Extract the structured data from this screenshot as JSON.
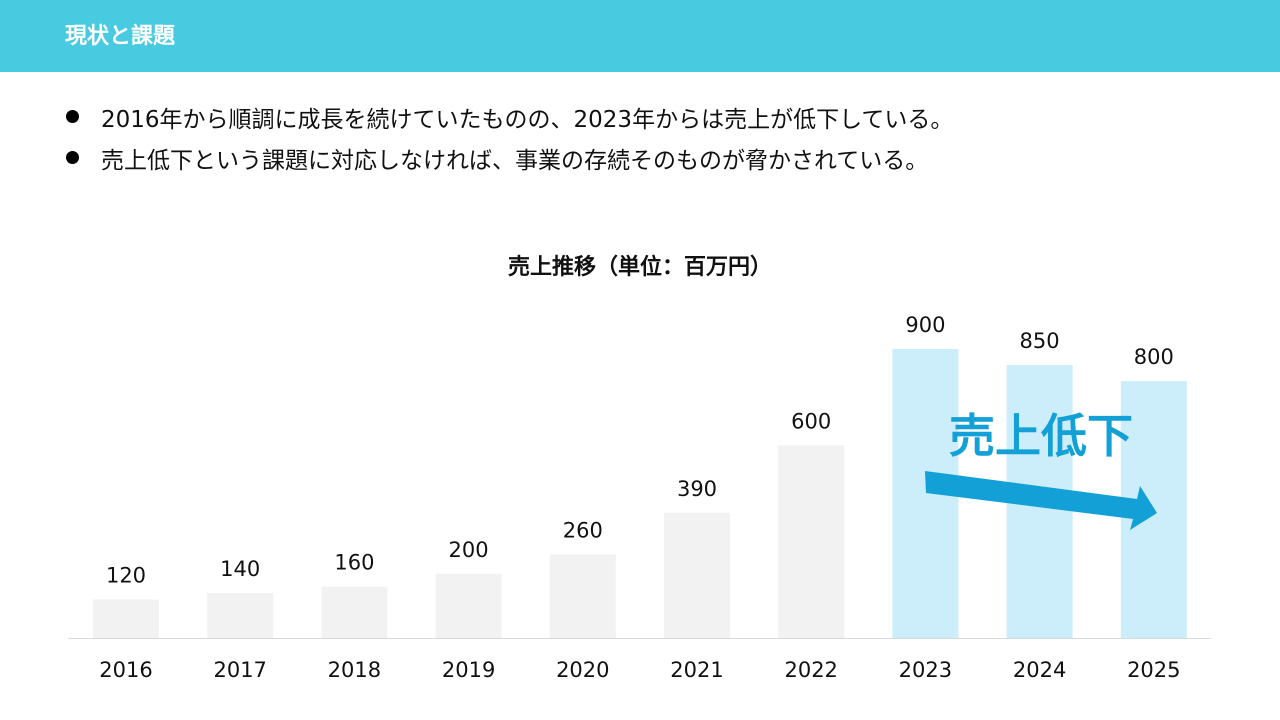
{
  "header": {
    "title": "現状と課題"
  },
  "bullets": [
    "2016年から順調に成長を続けていたものの、2023年からは売上が低下している。",
    "売上低下という課題に対応しなければ、事業の存続そのものが脅かされている。"
  ],
  "colors": {
    "header": "#48cae0",
    "bar_normal": "#f2f2f2",
    "bar_highlight": "#ccedfa",
    "accent": "#12a0d7"
  },
  "chart_data": {
    "type": "bar",
    "title": "売上推移（単位：百万円）",
    "categories": [
      "2016",
      "2017",
      "2018",
      "2019",
      "2020",
      "2021",
      "2022",
      "2023",
      "2024",
      "2025"
    ],
    "values": [
      120,
      140,
      160,
      200,
      260,
      390,
      600,
      900,
      850,
      800
    ],
    "highlighted": [
      "2023",
      "2024",
      "2025"
    ],
    "ylim": [
      0,
      900
    ],
    "grid": false,
    "data_labels": true,
    "annotation": {
      "text": "売上低下",
      "arrow": "down-right"
    }
  }
}
